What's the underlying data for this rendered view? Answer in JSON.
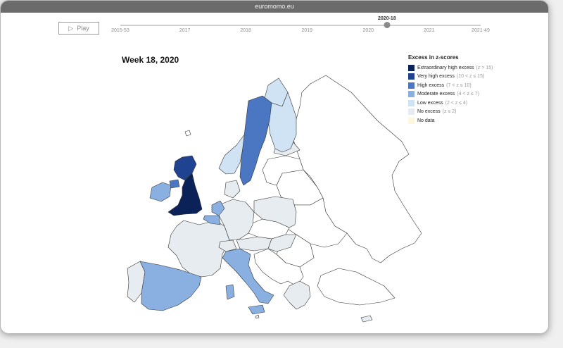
{
  "browser": {
    "url": "euromomo.eu"
  },
  "controls": {
    "play_label": "Play",
    "timeline_labels": [
      "2015-53",
      "2017",
      "2018",
      "2019",
      "2020",
      "2021",
      "2021-49"
    ],
    "current_week": "2020-18",
    "position_fraction": 0.74
  },
  "map": {
    "title": "Week 18, 2020",
    "legend_title": "Excess in z-scores",
    "legend": [
      {
        "label": "Extraordinary high excess",
        "range": "(z > 15)",
        "color": "#0b2258"
      },
      {
        "label": "Very high excess",
        "range": "(10 < z ≤ 15)",
        "color": "#1f4390"
      },
      {
        "label": "High excess",
        "range": "(7 < z ≤ 10)",
        "color": "#4a76c2"
      },
      {
        "label": "Moderate excess",
        "range": "(4 < z ≤ 7)",
        "color": "#8ab0e2"
      },
      {
        "label": "Low excess",
        "range": "(2 < z ≤ 4)",
        "color": "#cfe3f4"
      },
      {
        "label": "No excess",
        "range": "(z ≤ 2)",
        "color": "#e7ecf0"
      },
      {
        "label": "No data",
        "range": "",
        "color": "#fdf7dc"
      }
    ],
    "countries": [
      {
        "name": "England (UK)",
        "class": "extraordinary"
      },
      {
        "name": "Scotland (UK)",
        "class": "very-high"
      },
      {
        "name": "Northern Ireland (UK)",
        "class": "high"
      },
      {
        "name": "Sweden",
        "class": "high"
      },
      {
        "name": "Spain",
        "class": "moderate"
      },
      {
        "name": "Italy",
        "class": "moderate"
      },
      {
        "name": "Belgium",
        "class": "moderate"
      },
      {
        "name": "Netherlands",
        "class": "moderate"
      },
      {
        "name": "Ireland",
        "class": "moderate"
      },
      {
        "name": "Finland",
        "class": "low"
      },
      {
        "name": "Norway",
        "class": "low"
      },
      {
        "name": "France",
        "class": "none"
      },
      {
        "name": "Germany",
        "class": "none"
      },
      {
        "name": "Portugal",
        "class": "none"
      },
      {
        "name": "Poland",
        "class": "none"
      },
      {
        "name": "Austria",
        "class": "none"
      },
      {
        "name": "Switzerland",
        "class": "none"
      },
      {
        "name": "Denmark",
        "class": "none"
      },
      {
        "name": "Hungary",
        "class": "none"
      },
      {
        "name": "Greece",
        "class": "none"
      },
      {
        "name": "Estonia",
        "class": "none"
      },
      {
        "name": "Luxembourg",
        "class": "none"
      },
      {
        "name": "Malta",
        "class": "none"
      },
      {
        "name": "Cyprus",
        "class": "none"
      }
    ]
  }
}
